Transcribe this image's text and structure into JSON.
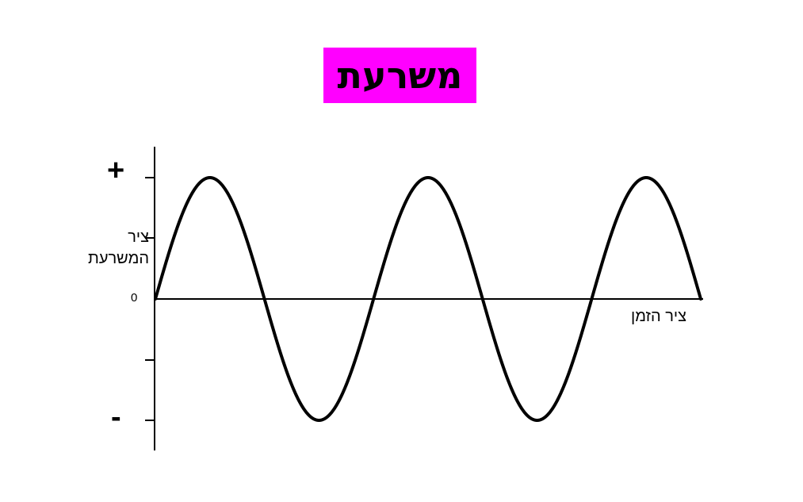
{
  "title": "משרעת",
  "axes": {
    "plus_sign": "+",
    "minus_sign": "-",
    "zero_label": "0",
    "y_axis_label_line1": "ציר",
    "y_axis_label_line2": "המשרעת",
    "x_axis_label": "ציר הזמן"
  },
  "colors": {
    "title_background": "#ff00ff",
    "wave": "#000000",
    "axis": "#000000"
  },
  "wave": {
    "type": "sine",
    "cycles": 2.5
  }
}
